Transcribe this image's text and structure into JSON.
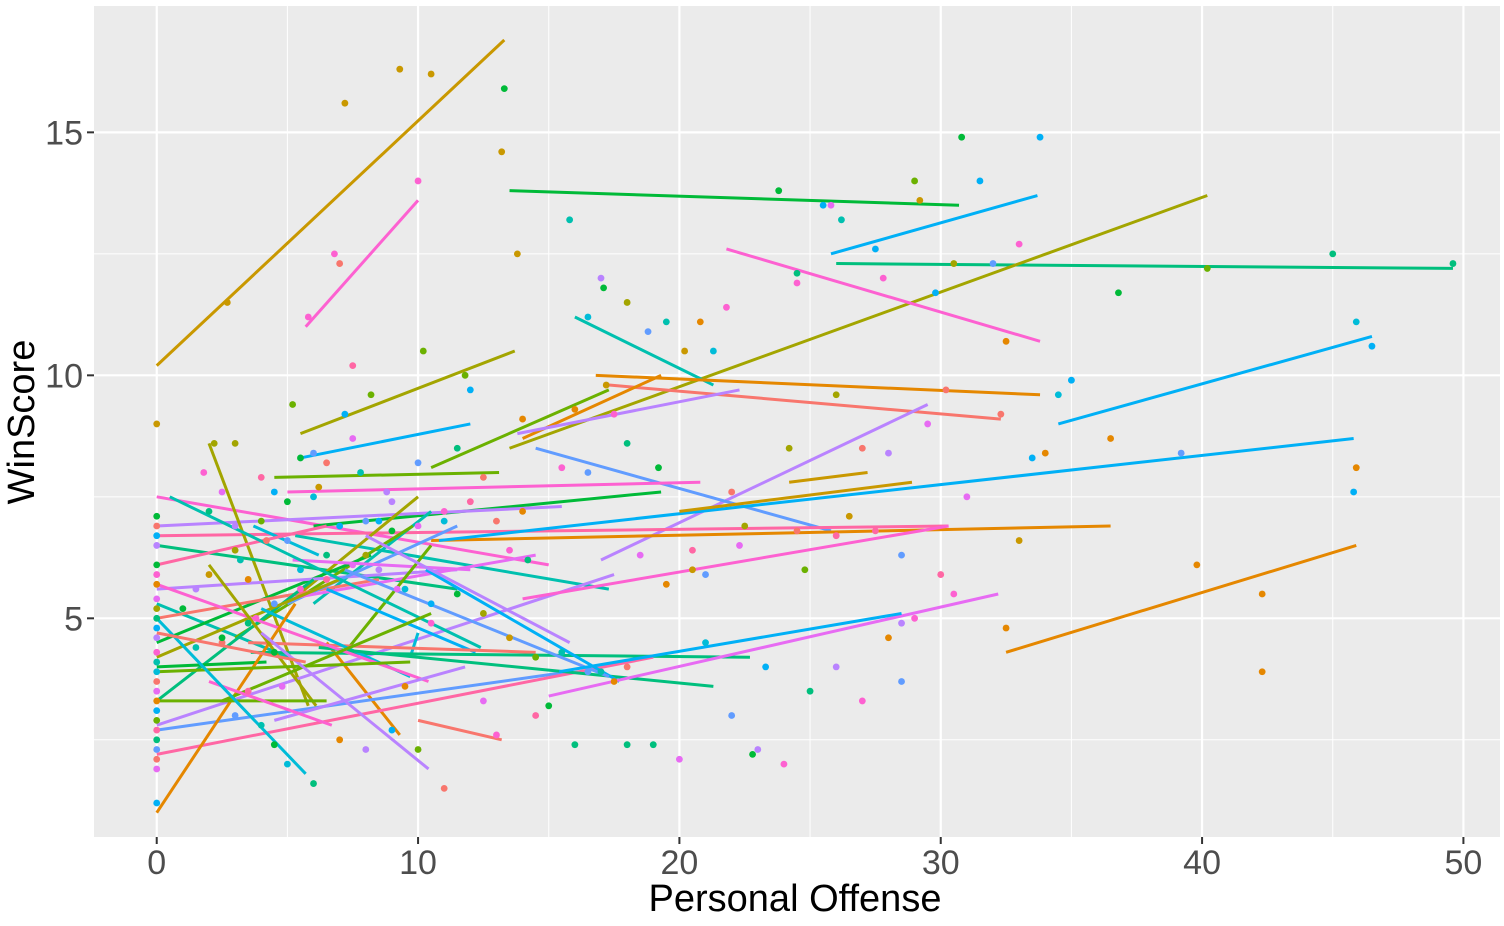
{
  "chart_data": {
    "type": "scatter",
    "title": "",
    "xlabel": "Personal Offense",
    "ylabel": "WinScore",
    "xlim": [
      -2.4,
      51.4
    ],
    "ylim": [
      0.5,
      17.6
    ],
    "xticks": [
      0,
      10,
      20,
      30,
      40,
      50
    ],
    "yticks": [
      5,
      10,
      15
    ],
    "grid": true,
    "legend": "none",
    "background": "#ebebeb",
    "gridcolor": "#ffffff",
    "palette": [
      "#F8766D",
      "#E58700",
      "#C99800",
      "#A3A500",
      "#6BB100",
      "#00BA38",
      "#00BF7D",
      "#00C0AF",
      "#00BCD8",
      "#00B0F6",
      "#619CFF",
      "#B983FF",
      "#E76BF3",
      "#FD61D1",
      "#FF67A4"
    ],
    "points": [
      [
        0,
        9.0,
        2
      ],
      [
        0,
        7.1,
        5
      ],
      [
        0,
        6.9,
        0
      ],
      [
        0,
        6.7,
        9
      ],
      [
        0,
        6.5,
        11
      ],
      [
        0,
        6.1,
        5
      ],
      [
        0,
        5.9,
        13
      ],
      [
        0,
        5.7,
        1
      ],
      [
        0,
        5.4,
        12
      ],
      [
        0,
        5.2,
        3
      ],
      [
        0,
        5.0,
        6
      ],
      [
        0,
        4.8,
        9
      ],
      [
        0,
        4.6,
        11
      ],
      [
        0,
        4.3,
        13
      ],
      [
        0,
        4.1,
        7
      ],
      [
        0,
        3.9,
        8
      ],
      [
        0,
        3.7,
        0
      ],
      [
        0,
        3.5,
        12
      ],
      [
        0,
        3.3,
        1
      ],
      [
        0,
        3.1,
        9
      ],
      [
        0,
        2.9,
        4
      ],
      [
        0,
        2.7,
        14
      ],
      [
        0,
        2.5,
        6
      ],
      [
        0,
        2.3,
        10
      ],
      [
        0,
        2.1,
        0
      ],
      [
        0,
        1.9,
        12
      ],
      [
        0,
        1.2,
        9
      ],
      [
        1,
        5.2,
        5
      ],
      [
        1.5,
        5.6,
        11
      ],
      [
        1.8,
        8.0,
        13
      ],
      [
        2,
        7.2,
        6
      ],
      [
        2.2,
        8.6,
        3
      ],
      [
        2.5,
        7.6,
        12
      ],
      [
        2.7,
        11.5,
        2
      ],
      [
        3,
        8.6,
        3
      ],
      [
        3,
        6.9,
        11
      ],
      [
        3.2,
        6.2,
        7
      ],
      [
        3.5,
        5.8,
        1
      ],
      [
        3.8,
        5.0,
        13
      ],
      [
        4,
        7.9,
        14
      ],
      [
        4.2,
        6.6,
        0
      ],
      [
        4.5,
        7.6,
        9
      ],
      [
        4.5,
        4.3,
        5
      ],
      [
        4.8,
        3.6,
        12
      ],
      [
        5,
        6.6,
        10
      ],
      [
        5.2,
        9.4,
        4
      ],
      [
        5.5,
        8.3,
        5
      ],
      [
        5.5,
        6.0,
        8
      ],
      [
        5.8,
        11.2,
        13
      ],
      [
        6,
        8.4,
        10
      ],
      [
        6.2,
        7.7,
        2
      ],
      [
        6.5,
        8.2,
        0
      ],
      [
        6.5,
        6.3,
        6
      ],
      [
        6.8,
        12.5,
        13
      ],
      [
        7,
        12.3,
        0
      ],
      [
        7.2,
        9.2,
        9
      ],
      [
        7.2,
        15.6,
        2
      ],
      [
        7.5,
        10.2,
        14
      ],
      [
        7.5,
        8.7,
        12
      ],
      [
        7.8,
        8.0,
        7
      ],
      [
        8,
        6.3,
        3
      ],
      [
        8.2,
        9.6,
        4
      ],
      [
        8.5,
        7.0,
        9
      ],
      [
        8.8,
        7.6,
        11
      ],
      [
        9,
        6.8,
        5
      ],
      [
        9.2,
        5.6,
        12
      ],
      [
        9.3,
        16.3,
        2
      ],
      [
        9.5,
        3.6,
        1
      ],
      [
        10,
        14.0,
        13
      ],
      [
        10,
        8.2,
        10
      ],
      [
        10.2,
        10.5,
        4
      ],
      [
        10.5,
        16.2,
        2
      ],
      [
        10.5,
        4.9,
        13
      ],
      [
        11,
        7.0,
        8
      ],
      [
        11.5,
        8.5,
        6
      ],
      [
        11.8,
        10.0,
        4
      ],
      [
        12,
        9.7,
        9
      ],
      [
        12.5,
        7.9,
        0
      ],
      [
        13.2,
        14.6,
        2
      ],
      [
        13.3,
        15.9,
        5
      ],
      [
        13.5,
        6.4,
        13
      ],
      [
        13.8,
        12.5,
        2
      ],
      [
        14,
        9.1,
        1
      ],
      [
        14.2,
        6.2,
        6
      ],
      [
        15.5,
        8.1,
        13
      ],
      [
        15.8,
        13.2,
        7
      ],
      [
        16,
        9.3,
        1
      ],
      [
        16.5,
        11.2,
        8
      ],
      [
        16.5,
        8.0,
        10
      ],
      [
        17,
        12.0,
        11
      ],
      [
        17.1,
        11.8,
        5
      ],
      [
        17.2,
        9.8,
        2
      ],
      [
        17.5,
        9.2,
        13
      ],
      [
        18,
        11.5,
        3
      ],
      [
        18,
        8.6,
        6
      ],
      [
        18.5,
        6.3,
        12
      ],
      [
        18.8,
        10.9,
        10
      ],
      [
        19.2,
        8.1,
        5
      ],
      [
        19.5,
        11.1,
        7
      ],
      [
        20.2,
        10.5,
        2
      ],
      [
        20.5,
        6.4,
        14
      ],
      [
        20.8,
        11.1,
        1
      ],
      [
        21,
        5.9,
        10
      ],
      [
        21.3,
        10.5,
        8
      ],
      [
        21.8,
        11.4,
        13
      ],
      [
        22,
        7.6,
        0
      ],
      [
        22.3,
        6.5,
        12
      ],
      [
        22.8,
        2.2,
        5
      ],
      [
        23.3,
        4.0,
        9
      ],
      [
        23.8,
        13.8,
        5
      ],
      [
        24.2,
        8.5,
        3
      ],
      [
        24.5,
        12.1,
        6
      ],
      [
        24.5,
        11.9,
        13
      ],
      [
        24.8,
        6.0,
        4
      ],
      [
        25.5,
        13.5,
        9
      ],
      [
        25.8,
        13.5,
        12
      ],
      [
        26,
        9.6,
        3
      ],
      [
        26.2,
        13.2,
        7
      ],
      [
        26.5,
        7.1,
        2
      ],
      [
        27,
        8.5,
        0
      ],
      [
        27.5,
        6.8,
        14
      ],
      [
        27.5,
        12.6,
        9
      ],
      [
        27.8,
        12.0,
        13
      ],
      [
        28,
        8.4,
        11
      ],
      [
        28.5,
        6.3,
        10
      ],
      [
        28.5,
        3.7,
        10
      ],
      [
        29,
        14.0,
        4
      ],
      [
        29.2,
        13.6,
        2
      ],
      [
        29.5,
        9.0,
        12
      ],
      [
        29.8,
        11.7,
        9
      ],
      [
        30.2,
        9.7,
        0
      ],
      [
        30.5,
        12.3,
        3
      ],
      [
        30.8,
        14.9,
        5
      ],
      [
        31.5,
        14.0,
        9
      ],
      [
        32,
        12.3,
        10
      ],
      [
        32.3,
        9.2,
        0
      ],
      [
        32.5,
        10.7,
        1
      ],
      [
        33,
        12.7,
        13
      ],
      [
        33.5,
        8.3,
        9
      ],
      [
        33.8,
        14.9,
        9
      ],
      [
        34,
        8.4,
        1
      ],
      [
        34.5,
        9.6,
        8
      ],
      [
        35,
        9.9,
        9
      ],
      [
        36.5,
        8.7,
        1
      ],
      [
        36.8,
        11.7,
        5
      ],
      [
        39.2,
        8.4,
        10
      ],
      [
        39.8,
        6.1,
        1
      ],
      [
        40.2,
        12.2,
        4
      ],
      [
        42.3,
        5.5,
        1
      ],
      [
        42.3,
        3.9,
        1
      ],
      [
        45,
        12.5,
        6
      ],
      [
        45.8,
        7.6,
        9
      ],
      [
        45.9,
        8.1,
        1
      ],
      [
        45.9,
        11.1,
        8
      ],
      [
        46.5,
        10.6,
        9
      ],
      [
        49.6,
        12.3,
        6
      ],
      [
        2.5,
        4.5,
        0
      ],
      [
        3,
        3.0,
        10
      ],
      [
        3.5,
        3.5,
        14
      ],
      [
        4,
        2.8,
        7
      ],
      [
        4.5,
        2.4,
        5
      ],
      [
        5,
        2.0,
        8
      ],
      [
        6,
        1.6,
        6
      ],
      [
        7,
        2.5,
        1
      ],
      [
        8,
        2.3,
        11
      ],
      [
        9,
        2.7,
        9
      ],
      [
        10,
        2.3,
        4
      ],
      [
        11,
        1.5,
        0
      ],
      [
        12.5,
        3.3,
        12
      ],
      [
        13,
        2.6,
        13
      ],
      [
        14.5,
        3.0,
        14
      ],
      [
        15,
        3.2,
        5
      ],
      [
        16,
        2.4,
        6
      ],
      [
        17,
        3.9,
        7
      ],
      [
        18,
        2.4,
        6
      ],
      [
        19,
        2.4,
        6
      ],
      [
        20,
        2.1,
        12
      ],
      [
        21,
        4.5,
        8
      ],
      [
        22,
        3.0,
        10
      ],
      [
        23,
        2.3,
        11
      ],
      [
        24,
        2.0,
        13
      ],
      [
        25,
        3.5,
        6
      ],
      [
        26,
        4.0,
        11
      ],
      [
        27,
        3.3,
        13
      ],
      [
        28,
        4.6,
        1
      ],
      [
        29,
        5.0,
        13
      ],
      [
        30.5,
        5.5,
        13
      ],
      [
        31,
        7.5,
        12
      ],
      [
        32.5,
        4.8,
        1
      ],
      [
        33,
        6.6,
        2
      ],
      [
        30,
        5.9,
        14
      ],
      [
        28.5,
        4.9,
        11
      ],
      [
        26,
        6.7,
        14
      ],
      [
        24.5,
        6.8,
        0
      ],
      [
        22.5,
        6.9,
        3
      ],
      [
        20.5,
        6.0,
        2
      ],
      [
        19.5,
        5.7,
        1
      ],
      [
        18,
        4.0,
        0
      ],
      [
        17.5,
        3.7,
        1
      ],
      [
        16.5,
        3.9,
        10
      ],
      [
        15.5,
        4.3,
        7
      ],
      [
        14.5,
        4.2,
        4
      ],
      [
        13.5,
        4.6,
        2
      ],
      [
        12.5,
        5.1,
        3
      ],
      [
        11.5,
        5.5,
        5
      ],
      [
        10.5,
        5.3,
        9
      ],
      [
        9.5,
        5.6,
        8
      ],
      [
        8.5,
        6.0,
        11
      ],
      [
        7.5,
        6.1,
        12
      ],
      [
        6.5,
        5.8,
        14
      ],
      [
        5.5,
        5.6,
        13
      ],
      [
        4.5,
        5.3,
        10
      ],
      [
        3.5,
        4.9,
        6
      ],
      [
        2.5,
        4.6,
        5
      ],
      [
        1.5,
        4.4,
        7
      ],
      [
        2,
        5.9,
        2
      ],
      [
        3,
        6.4,
        3
      ],
      [
        4,
        7.0,
        4
      ],
      [
        5,
        7.4,
        5
      ],
      [
        6,
        7.5,
        8
      ],
      [
        7,
        6.9,
        9
      ],
      [
        8,
        7.0,
        10
      ],
      [
        9,
        7.4,
        11
      ],
      [
        10,
        6.9,
        12
      ],
      [
        11,
        7.2,
        13
      ],
      [
        12,
        7.4,
        14
      ],
      [
        13,
        7.0,
        0
      ],
      [
        14,
        7.2,
        1
      ]
    ],
    "lines": [
      [
        0,
        10.2,
        13.3,
        16.9,
        2
      ],
      [
        5.7,
        11.0,
        10,
        13.6,
        13
      ],
      [
        13.5,
        13.8,
        30.7,
        13.5,
        5
      ],
      [
        25.8,
        12.5,
        33.7,
        13.7,
        9
      ],
      [
        0,
        7.5,
        15,
        6.1,
        13
      ],
      [
        26,
        12.3,
        49.6,
        12.2,
        6
      ],
      [
        13.5,
        8.5,
        40.2,
        13.7,
        3
      ],
      [
        21.8,
        12.6,
        33.8,
        10.7,
        13
      ],
      [
        16,
        11.2,
        21.3,
        9.8,
        7
      ],
      [
        5.5,
        8.8,
        13.7,
        10.5,
        3
      ],
      [
        5.5,
        8.3,
        12,
        9.0,
        9
      ],
      [
        16.8,
        10.0,
        33.8,
        9.6,
        1
      ],
      [
        17.3,
        9.8,
        32.3,
        9.1,
        0
      ],
      [
        10.5,
        8.1,
        17.3,
        9.7,
        4
      ],
      [
        14,
        8.7,
        19.3,
        10.0,
        1
      ],
      [
        13.8,
        8.8,
        22.3,
        9.7,
        11
      ],
      [
        34.5,
        9.0,
        46.5,
        10.8,
        9
      ],
      [
        17,
        6.2,
        29.5,
        9.4,
        11
      ],
      [
        14.5,
        8.5,
        25.8,
        6.8,
        10
      ],
      [
        4.5,
        7.9,
        13.1,
        8.0,
        4
      ],
      [
        5,
        7.6,
        20.8,
        7.8,
        13
      ],
      [
        6,
        6.9,
        19.3,
        7.6,
        5
      ],
      [
        0,
        6.9,
        15.5,
        7.3,
        11
      ],
      [
        0,
        6.7,
        30.3,
        6.9,
        14
      ],
      [
        10.5,
        6.6,
        36.5,
        6.9,
        1
      ],
      [
        10.8,
        6.6,
        45.8,
        8.7,
        9
      ],
      [
        24.2,
        7.8,
        27.2,
        8.0,
        2
      ],
      [
        20,
        7.2,
        28.9,
        7.8,
        2
      ],
      [
        2,
        8.6,
        5.8,
        3.2,
        3
      ],
      [
        0,
        5.3,
        5.5,
        4.1,
        7
      ],
      [
        0,
        6.5,
        11.5,
        5.6,
        6
      ],
      [
        5.3,
        6.7,
        17.3,
        5.6,
        7
      ],
      [
        6,
        5.3,
        10.5,
        7.2,
        7
      ],
      [
        5,
        5.3,
        10,
        7.5,
        3
      ],
      [
        3,
        4.6,
        9.8,
        6.9,
        4
      ],
      [
        0,
        4.5,
        8.2,
        6.3,
        5
      ],
      [
        0,
        5.6,
        11.5,
        6.0,
        11
      ],
      [
        0,
        5.0,
        8.5,
        5.8,
        0
      ],
      [
        5,
        5.3,
        11.5,
        6.9,
        10
      ],
      [
        5.2,
        6.2,
        12,
        6.0,
        12
      ],
      [
        3.7,
        6.9,
        6.2,
        6.3,
        8
      ],
      [
        5,
        5.4,
        14.5,
        6.3,
        12
      ],
      [
        7.2,
        4.3,
        10.5,
        6.5,
        4
      ],
      [
        0,
        3.3,
        6,
        5.8,
        6
      ],
      [
        0,
        2.8,
        17.5,
        5.9,
        11
      ],
      [
        0,
        6.1,
        6.5,
        6.9,
        14
      ],
      [
        0,
        4.2,
        7,
        5.8,
        3
      ],
      [
        6.5,
        4.5,
        9.3,
        2.6,
        1
      ],
      [
        6.5,
        5.6,
        12.2,
        4.3,
        9
      ],
      [
        10,
        4.7,
        9.7,
        4.2,
        8
      ],
      [
        3.5,
        4.5,
        14.5,
        4.3,
        0
      ],
      [
        3.6,
        4.3,
        22.7,
        4.2,
        6
      ],
      [
        0,
        4.0,
        4.2,
        4.1,
        5
      ],
      [
        4,
        5.2,
        9.7,
        3.8,
        8
      ],
      [
        0,
        2.7,
        15.8,
        3.9,
        10
      ],
      [
        0,
        2.2,
        19,
        4.2,
        14
      ],
      [
        6.2,
        4.4,
        21.3,
        3.6,
        6
      ],
      [
        10.3,
        6.0,
        17.7,
        3.7,
        9
      ],
      [
        7.2,
        6.0,
        17.3,
        3.8,
        10
      ],
      [
        8,
        6.7,
        15.8,
        4.5,
        11
      ],
      [
        0.5,
        7.5,
        12.4,
        4.4,
        7
      ],
      [
        0,
        5.7,
        10.4,
        3.7,
        13
      ],
      [
        0,
        1.0,
        5.3,
        5.3,
        1
      ],
      [
        2,
        6.1,
        6.1,
        3.2,
        3
      ],
      [
        2.5,
        3.3,
        10.5,
        5.1,
        4
      ],
      [
        0,
        3.3,
        6.5,
        3.3,
        4
      ],
      [
        0,
        3.9,
        9.7,
        4.1,
        4
      ],
      [
        4.5,
        2.9,
        11.8,
        4.0,
        11
      ],
      [
        2,
        3.7,
        6.7,
        2.8,
        13
      ],
      [
        4,
        4.7,
        10.4,
        1.9,
        11
      ],
      [
        0,
        5.0,
        5.7,
        1.8,
        8
      ],
      [
        10,
        2.9,
        13.2,
        2.5,
        0
      ],
      [
        14,
        5.4,
        30.3,
        6.9,
        13
      ],
      [
        15,
        3.4,
        32.2,
        5.5,
        12
      ],
      [
        15.4,
        3.9,
        28.5,
        5.1,
        9
      ],
      [
        0,
        4.7,
        5.7,
        4.1,
        0
      ],
      [
        32.5,
        4.3,
        45.9,
        6.5,
        1
      ]
    ]
  }
}
